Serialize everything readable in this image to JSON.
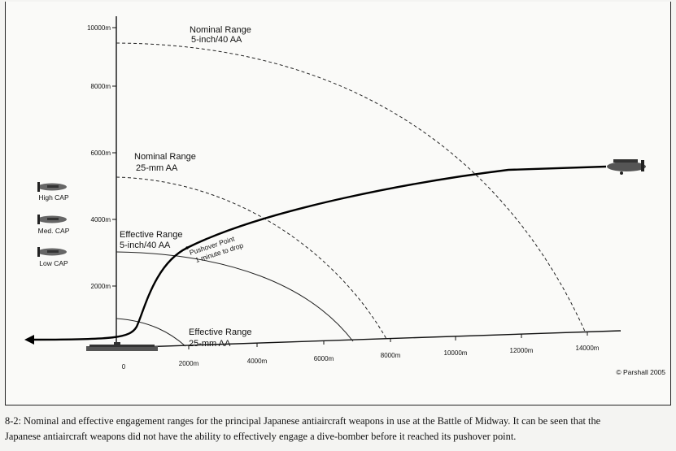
{
  "diagram": {
    "y_ticks": [
      {
        "label": "10000m",
        "value": 10000
      },
      {
        "label": "8000m",
        "value": 8000
      },
      {
        "label": "6000m",
        "value": 6000
      },
      {
        "label": "4000m",
        "value": 4000
      },
      {
        "label": "2000m",
        "value": 2000
      }
    ],
    "x_ticks": [
      {
        "label": "0",
        "value": 0
      },
      {
        "label": "2000m",
        "value": 2000
      },
      {
        "label": "4000m",
        "value": 4000
      },
      {
        "label": "6000m",
        "value": 6000
      },
      {
        "label": "8000m",
        "value": 8000
      },
      {
        "label": "10000m",
        "value": 10000
      },
      {
        "label": "12000m",
        "value": 12000
      },
      {
        "label": "14000m",
        "value": 14000
      }
    ],
    "labels": {
      "nominal_5in_title": "Nominal Range",
      "nominal_5in_sub": "5-inch/40 AA",
      "nominal_25mm_title": "Nominal Range",
      "nominal_25mm_sub": "25-mm AA",
      "effective_5in_title": "Effective Range",
      "effective_5in_sub": "5-inch/40 AA",
      "effective_25mm_title": "Effective Range",
      "effective_25mm_sub": "25-mm AA",
      "pushover_line1": "Pushover Point",
      "pushover_line2": "1 minute to drop"
    },
    "cap": {
      "high": "High CAP",
      "med": "Med. CAP",
      "low": "Low CAP"
    },
    "credit": "© Parshall 2005"
  },
  "caption": {
    "line1": "8-2: Nominal and effective engagement ranges for the principal Japanese antiaircraft weapons in use at the Battle of Midway. It can be seen that the",
    "line2": "Japanese antiaircraft weapons did not have the ability to effectively engage a dive-bomber before it reached its pushover point."
  }
}
